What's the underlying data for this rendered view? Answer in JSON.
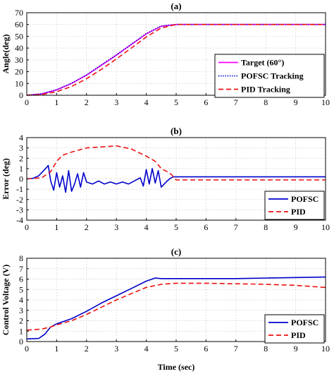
{
  "chart_data": [
    {
      "type": "line",
      "title": "(a)",
      "xlabel": "",
      "ylabel": "Angle(deg)",
      "xlim": [
        0,
        10
      ],
      "ylim": [
        0,
        70
      ],
      "xticks": [
        0,
        1,
        2,
        3,
        4,
        5,
        6,
        7,
        8,
        9,
        10
      ],
      "yticks": [
        0,
        10,
        20,
        30,
        40,
        50,
        60,
        70
      ],
      "grid": true,
      "legend_position": "bottom-right",
      "series": [
        {
          "name": "Target (60°)",
          "color": "#ff00ff",
          "style": "solid",
          "x": [
            0,
            0.5,
            1,
            1.5,
            2,
            2.5,
            3,
            3.5,
            4,
            4.5,
            5,
            6,
            7,
            8,
            9,
            10
          ],
          "y": [
            0,
            1.1,
            4.5,
            10,
            17,
            25.5,
            34,
            43,
            52,
            58.5,
            60,
            60,
            60,
            60,
            60,
            60
          ]
        },
        {
          "name": "POFSC Tracking",
          "color": "#0000cc",
          "style": "dotted",
          "x": [
            0,
            0.5,
            1,
            1.5,
            2,
            2.5,
            3,
            3.5,
            4,
            4.5,
            5,
            6,
            7,
            8,
            9,
            10
          ],
          "y": [
            0,
            1.3,
            4.8,
            10.3,
            17.3,
            25.8,
            34.3,
            43.3,
            52.3,
            58.7,
            60,
            60,
            60,
            60,
            60,
            60
          ]
        },
        {
          "name": "PID Tracking",
          "color": "#ee1111",
          "style": "dashed",
          "x": [
            0,
            0.5,
            1,
            1.5,
            2,
            2.5,
            3,
            3.5,
            4,
            4.5,
            5,
            6,
            7,
            8,
            9,
            10
          ],
          "y": [
            0,
            0.6,
            3,
            7.5,
            14,
            22,
            30.8,
            40,
            49.5,
            57,
            60,
            60,
            60,
            60,
            60,
            60
          ]
        }
      ]
    },
    {
      "type": "line",
      "title": "(b)",
      "xlabel": "",
      "ylabel": "Error (deg)",
      "xlim": [
        0,
        10
      ],
      "ylim": [
        -4,
        4
      ],
      "xticks": [
        0,
        1,
        2,
        3,
        4,
        5,
        6,
        7,
        8,
        9,
        10
      ],
      "yticks": [
        -4,
        -3,
        -2,
        -1,
        0,
        1,
        2,
        3,
        4
      ],
      "grid": true,
      "legend_position": "bottom-right",
      "series": [
        {
          "name": "POFSC",
          "color": "#0000cc",
          "style": "solid",
          "x": [
            0,
            0.2,
            0.4,
            0.6,
            0.72,
            0.8,
            0.9,
            1.0,
            1.1,
            1.2,
            1.3,
            1.4,
            1.5,
            1.6,
            1.7,
            1.8,
            1.9,
            2.0,
            2.2,
            2.4,
            2.6,
            2.8,
            3.0,
            3.2,
            3.4,
            3.6,
            3.8,
            3.9,
            4.0,
            4.1,
            4.2,
            4.3,
            4.4,
            4.5,
            4.6,
            4.7,
            4.8,
            4.9,
            5.0,
            6.0,
            7.0,
            8.0,
            9.0,
            10.0
          ],
          "y": [
            0,
            0.05,
            0.3,
            0.9,
            1.3,
            -0.2,
            -1.1,
            0.6,
            -0.8,
            0.3,
            -1.3,
            0.8,
            -1.2,
            -0.5,
            0.5,
            -0.8,
            0.6,
            -0.3,
            -0.5,
            -0.2,
            -0.5,
            -0.3,
            -0.5,
            -0.3,
            -0.5,
            -0.2,
            0.1,
            -0.7,
            0.9,
            -0.5,
            1.0,
            -0.4,
            0.8,
            -0.8,
            -0.5,
            -0.2,
            0.05,
            0.2,
            0.2,
            0.2,
            0.2,
            0.2,
            0.2,
            0.2
          ]
        },
        {
          "name": "PID",
          "color": "#ee1111",
          "style": "dashed",
          "x": [
            0,
            0.5,
            0.8,
            1.0,
            1.2,
            1.5,
            2.0,
            2.5,
            3.0,
            3.5,
            4.0,
            4.3,
            4.5,
            4.7,
            4.85,
            5.0,
            6.0,
            7.0,
            8.0,
            9.0,
            10.0
          ],
          "y": [
            0,
            0.1,
            0.7,
            1.7,
            2.3,
            2.6,
            3.0,
            3.1,
            3.2,
            2.9,
            2.2,
            1.7,
            1.0,
            0.7,
            0.4,
            -0.1,
            -0.1,
            -0.1,
            -0.1,
            -0.1,
            -0.1
          ]
        }
      ]
    },
    {
      "type": "line",
      "title": "(c)",
      "xlabel": "Time (sec)",
      "ylabel": "Control Voltage (V)",
      "xlim": [
        0,
        10
      ],
      "ylim": [
        0,
        8
      ],
      "xticks": [
        0,
        1,
        2,
        3,
        4,
        5,
        6,
        7,
        8,
        9,
        10
      ],
      "yticks": [
        0,
        1,
        2,
        3,
        4,
        5,
        6,
        7,
        8
      ],
      "grid": true,
      "legend_position": "bottom-right",
      "series": [
        {
          "name": "POFSC",
          "color": "#0000cc",
          "style": "solid",
          "x": [
            0,
            0.4,
            0.6,
            0.8,
            1.0,
            1.5,
            2.0,
            2.5,
            3.0,
            3.5,
            4.0,
            4.3,
            4.5,
            5.0,
            6.0,
            7.0,
            8.0,
            9.0,
            10.0
          ],
          "y": [
            0.25,
            0.3,
            0.7,
            1.4,
            1.7,
            2.2,
            2.9,
            3.7,
            4.4,
            5.1,
            5.8,
            6.1,
            6.05,
            6.05,
            6.05,
            6.05,
            6.1,
            6.15,
            6.2
          ]
        },
        {
          "name": "PID",
          "color": "#ee1111",
          "style": "dashed",
          "x": [
            0,
            0.5,
            0.8,
            1.0,
            1.5,
            2.0,
            2.5,
            3.0,
            3.5,
            4.0,
            4.5,
            5.0,
            6.0,
            7.0,
            8.0,
            9.0,
            10.0
          ],
          "y": [
            1.1,
            1.2,
            1.4,
            1.6,
            2.0,
            2.6,
            3.3,
            4.0,
            4.6,
            5.2,
            5.5,
            5.6,
            5.6,
            5.55,
            5.5,
            5.4,
            5.2
          ]
        }
      ]
    }
  ]
}
